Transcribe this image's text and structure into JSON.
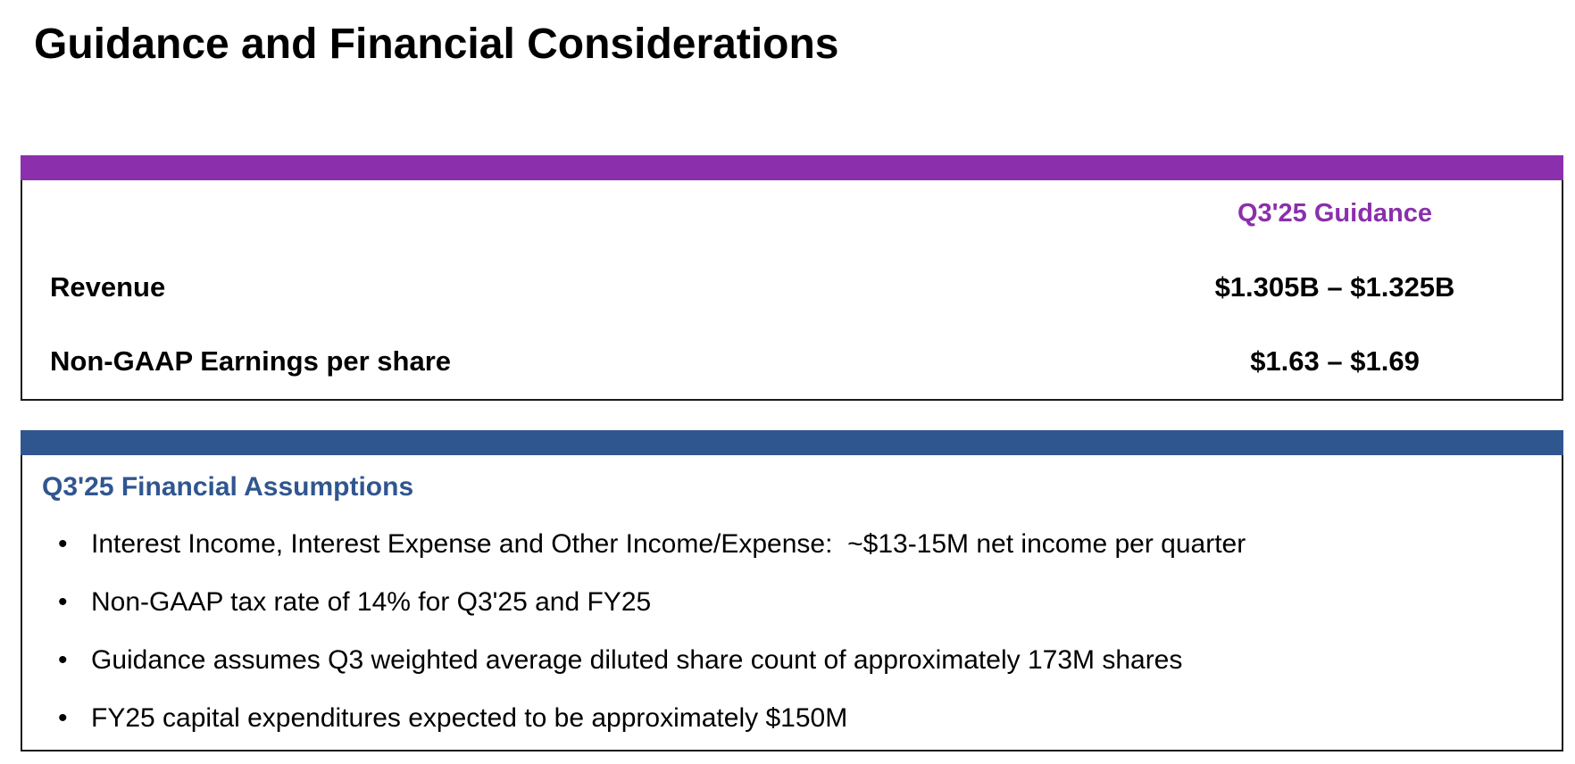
{
  "page": {
    "title": "Guidance and Financial Considerations"
  },
  "colors": {
    "guidance_accent": "#8b2fac",
    "assumptions_accent": "#30568f",
    "border": "#1a1a1a",
    "text": "#000000"
  },
  "guidance": {
    "column_header": "Q3'25 Guidance",
    "rows": [
      {
        "label": "Revenue",
        "value": "$1.305B – $1.325B"
      },
      {
        "label": "Non-GAAP Earnings per share",
        "value": "$1.63 – $1.69"
      }
    ]
  },
  "assumptions": {
    "heading": "Q3'25 Financial Assumptions",
    "bullet_symbol": "•",
    "items": [
      "Interest Income, Interest Expense and Other Income/Expense:  ~$13-15M net income per quarter",
      "Non-GAAP tax rate of 14% for Q3'25 and FY25",
      "Guidance assumes Q3 weighted average diluted share count of approximately 173M shares",
      "FY25 capital expenditures expected to be approximately $150M"
    ]
  }
}
